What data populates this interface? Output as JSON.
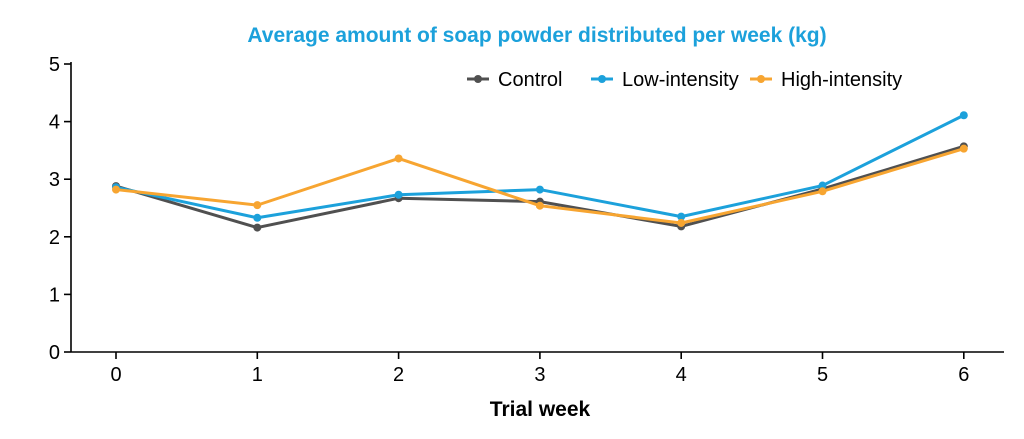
{
  "chart_data": {
    "type": "line",
    "title": "Average amount of soap powder distributed per week (kg)",
    "xlabel": "Trial week",
    "ylabel": "",
    "x": [
      0,
      1,
      2,
      3,
      4,
      5,
      6
    ],
    "x_tick_labels": [
      "0",
      "1",
      "2",
      "3",
      "4",
      "5",
      "6"
    ],
    "y_tick_labels": [
      "0",
      "1",
      "2",
      "3",
      "4",
      "5"
    ],
    "ylim": [
      0,
      5
    ],
    "grid": false,
    "legend_position": "top-right",
    "series": [
      {
        "name": "Control",
        "color": "#505050",
        "values": [
          2.88,
          2.16,
          2.67,
          2.61,
          2.18,
          2.83,
          3.57
        ]
      },
      {
        "name": "Low-intensity",
        "color": "#1CA1DB",
        "values": [
          2.86,
          2.33,
          2.73,
          2.82,
          2.35,
          2.89,
          4.11
        ]
      },
      {
        "name": "High-intensity",
        "color": "#F7A531",
        "values": [
          2.82,
          2.55,
          3.36,
          2.54,
          2.24,
          2.79,
          3.53
        ]
      }
    ]
  },
  "colors": {
    "title": "#1CA1DB",
    "axis": "#000000"
  }
}
